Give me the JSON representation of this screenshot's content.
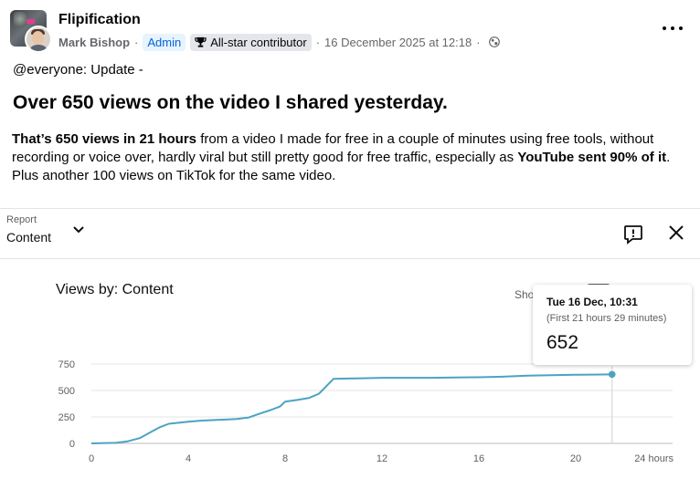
{
  "post": {
    "group_name": "Flipification",
    "author": "Mark Bishop",
    "separator": "·",
    "admin_badge": "Admin",
    "allstar_badge": "All-star contributor",
    "timestamp": "16 December 2025 at 12:18",
    "mention_line": "@everyone: Update -",
    "headline": "Over 650 views on the video I shared yesterday.",
    "body": {
      "b1": "That’s 650 views in 21 hours",
      "t1": " from a video I made for free in a couple of minutes using free tools, without recording or voice over, hardly viral but still pretty good for free traffic, especially as ",
      "b2": "YouTube sent 90% of it",
      "t2": ". Plus another 100 views on TikTok for the same video."
    },
    "icons": [
      "trophy-icon",
      "globe-icon",
      "more-options-icon",
      "chevron-down-icon",
      "feedback-icon",
      "close-icon"
    ]
  },
  "report": {
    "label": "Report",
    "value": "Content",
    "chart_title": "Views by: Content",
    "show_label": "Sho",
    "tooltip": {
      "date": "Tue 16 Dec, 10:31",
      "sub": "(First 21 hours 29 minutes)",
      "value": "652"
    }
  },
  "chart_data": {
    "type": "line",
    "title": "Views by: Content",
    "xlim": [
      0,
      24
    ],
    "ylim": [
      0,
      750
    ],
    "x_ticks": [
      "0",
      "4",
      "8",
      "12",
      "16",
      "20",
      "24 hours"
    ],
    "x_tick_values": [
      0,
      4,
      8,
      12,
      16,
      20,
      24
    ],
    "y_ticks": [
      "750",
      "500",
      "250",
      "0"
    ],
    "y_tick_values": [
      750,
      500,
      250,
      0
    ],
    "grid": true,
    "line_color": "#4ba3c3",
    "series": [
      {
        "x": [
          0,
          1,
          1.5,
          2,
          2.4,
          2.8,
          3.2,
          3.6,
          4,
          4.5,
          5,
          6,
          6.5,
          7,
          7.4,
          7.8,
          8,
          8.5,
          9,
          9.4,
          9.7,
          10,
          11,
          12,
          14,
          16,
          17,
          18,
          20,
          21.5
        ],
        "y": [
          0,
          5,
          20,
          50,
          100,
          150,
          185,
          195,
          205,
          215,
          220,
          230,
          245,
          285,
          315,
          350,
          395,
          410,
          430,
          470,
          540,
          610,
          615,
          620,
          620,
          625,
          630,
          640,
          648,
          652
        ]
      }
    ],
    "highlight_point": {
      "x": 21.5,
      "y": 652
    }
  }
}
